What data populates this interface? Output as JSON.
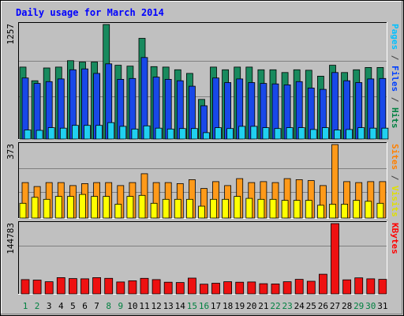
{
  "chart_data": [
    {
      "type": "bar",
      "title": "Daily usage for March 2014",
      "ymax_label": "1257",
      "ymax": 1257,
      "right_labels": [
        {
          "text": "Pages",
          "color": "#00c0ff"
        },
        {
          "text": " / ",
          "color": "#404040"
        },
        {
          "text": "Files",
          "color": "#0040ff"
        },
        {
          "text": " / ",
          "color": "#404040"
        },
        {
          "text": "Hits",
          "color": "#008040"
        }
      ],
      "series": [
        {
          "name": "Hits",
          "color": "#188a5e",
          "values": [
            790,
            640,
            780,
            790,
            860,
            845,
            845,
            1257,
            810,
            800,
            1105,
            795,
            790,
            760,
            720,
            435,
            790,
            760,
            790,
            790,
            760,
            760,
            730,
            760,
            755,
            690,
            810,
            730,
            760,
            785,
            785
          ]
        },
        {
          "name": "Files",
          "color": "#1848e8",
          "values": [
            670,
            610,
            630,
            660,
            760,
            770,
            720,
            825,
            655,
            665,
            895,
            680,
            655,
            640,
            580,
            365,
            670,
            620,
            660,
            620,
            610,
            605,
            595,
            630,
            560,
            545,
            730,
            640,
            620,
            660,
            665
          ]
        },
        {
          "name": "Pages",
          "color": "#20d0f0",
          "values": [
            100,
            95,
            125,
            120,
            150,
            150,
            150,
            180,
            140,
            110,
            145,
            120,
            110,
            115,
            115,
            70,
            125,
            115,
            140,
            140,
            125,
            115,
            125,
            125,
            105,
            125,
            100,
            105,
            125,
            120,
            120
          ]
        }
      ]
    },
    {
      "type": "bar",
      "ymax_label": "373",
      "ymax": 373,
      "right_labels": [
        {
          "text": "Sites",
          "color": "#ff8000"
        },
        {
          "text": " / ",
          "color": "#404040"
        },
        {
          "text": "Visits",
          "color": "#e0e000"
        }
      ],
      "series": [
        {
          "name": "Visits",
          "color": "#ff9a1a",
          "values": [
            180,
            160,
            180,
            180,
            165,
            175,
            180,
            180,
            165,
            180,
            225,
            180,
            180,
            175,
            195,
            150,
            185,
            165,
            200,
            180,
            185,
            180,
            200,
            195,
            190,
            165,
            373,
            185,
            180,
            185,
            185
          ]
        },
        {
          "name": "Sites",
          "color": "#ffff00",
          "values": [
            75,
            105,
            95,
            110,
            110,
            120,
            110,
            110,
            70,
            110,
            115,
            75,
            95,
            95,
            95,
            60,
            95,
            95,
            110,
            100,
            95,
            95,
            90,
            90,
            90,
            65,
            70,
            70,
            90,
            85,
            75
          ]
        }
      ]
    },
    {
      "type": "bar",
      "ymax_label": "144783",
      "ymax": 144783,
      "right_labels": [
        {
          "text": "KBytes",
          "color": "#ff0000"
        }
      ],
      "series": [
        {
          "name": "KBytes",
          "color": "#ee1111",
          "values": [
            29500,
            28500,
            25000,
            33500,
            31500,
            31000,
            33500,
            32000,
            24500,
            27000,
            32000,
            29500,
            24000,
            23500,
            32500,
            20000,
            22000,
            25000,
            24000,
            24500,
            21000,
            20500,
            25000,
            30000,
            26000,
            40500,
            144783,
            29000,
            33000,
            31000,
            30000
          ]
        }
      ]
    }
  ],
  "days": [
    "1",
    "2",
    "3",
    "4",
    "5",
    "6",
    "7",
    "8",
    "9",
    "10",
    "11",
    "12",
    "13",
    "14",
    "15",
    "16",
    "17",
    "18",
    "19",
    "20",
    "21",
    "22",
    "23",
    "24",
    "25",
    "26",
    "27",
    "28",
    "29",
    "30",
    "31"
  ],
  "day_colors": [
    "#008040",
    "#008040",
    "#000000",
    "#000000",
    "#000000",
    "#000000",
    "#000000",
    "#008040",
    "#008040",
    "#000000",
    "#000000",
    "#000000",
    "#000000",
    "#000000",
    "#008040",
    "#008040",
    "#000000",
    "#000000",
    "#000000",
    "#000000",
    "#000000",
    "#008040",
    "#008040",
    "#000000",
    "#000000",
    "#000000",
    "#000000",
    "#000000",
    "#008040",
    "#008040",
    "#000000"
  ]
}
